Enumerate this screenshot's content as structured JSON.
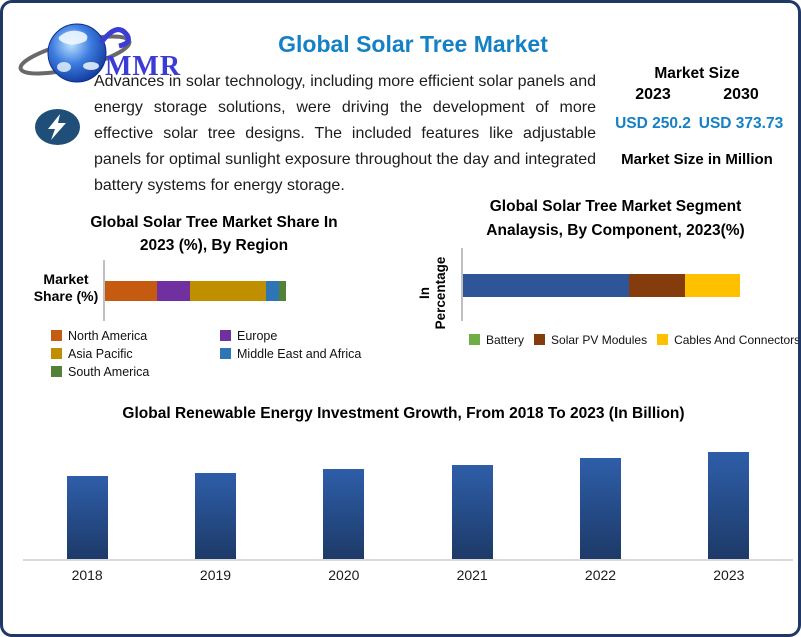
{
  "colors": {
    "frame_border": "#1F3864",
    "accent_blue": "#1581C5",
    "logo_blue": "#3B3BD6",
    "bolt_badge_bg": "#1F4E79",
    "axis_gray": "#BFBFBF",
    "baseline_gray": "#D9D9D9"
  },
  "header": {
    "logo": {
      "text": "MMR"
    },
    "title": "Global Solar Tree Market",
    "market_size": {
      "heading": "Market Size",
      "columns": [
        {
          "year": "2023",
          "value": "USD 250.2"
        },
        {
          "year": "2030",
          "value": "USD 373.73"
        }
      ],
      "footnote": "Market Size in Million"
    }
  },
  "intro": {
    "icon": "lightning-bolt",
    "text": "Advances in solar technology, including more efficient solar panels and energy storage solutions, were driving the development of more effective solar tree designs. The included features like adjustable panels for optimal sunlight exposure throughout the day and integrated battery systems for energy storage."
  },
  "chart_data": [
    {
      "id": "region-share",
      "type": "bar",
      "variant": "stacked-horizontal",
      "title": "Global Solar Tree Market Share In 2023 (%), By Region",
      "title_lines": [
        "Global Solar Tree Market Share In",
        "2023 (%), By Region"
      ],
      "ylabel": "Market Share (%)",
      "ylabel_lines": [
        "Market",
        "Share (%)"
      ],
      "note": "no data labels shown; segment shares estimated from bar lengths, total = 100%",
      "series": [
        {
          "name": "North America",
          "value": 29,
          "color": "#C55A11"
        },
        {
          "name": "Europe",
          "value": 18,
          "color": "#7030A0"
        },
        {
          "name": "Asia Pacific",
          "value": 42,
          "color": "#BF8F00"
        },
        {
          "name": "Middle East and Africa",
          "value": 7,
          "color": "#2E75B6"
        },
        {
          "name": "South America",
          "value": 4,
          "color": "#538135"
        }
      ],
      "legend_columns": [
        [
          0,
          2,
          4
        ],
        [
          1,
          3
        ]
      ],
      "legend_position": "bottom",
      "grid": false
    },
    {
      "id": "component-share",
      "type": "bar",
      "variant": "stacked-horizontal",
      "title": "Global Solar Tree Market Segment Analaysis, By Component, 2023(%)",
      "title_lines": [
        "Global Solar Tree Market Segment",
        "Analaysis, By Component, 2023(%)"
      ],
      "ylabel": "In Percentage",
      "ylabel_lines": [
        "In",
        "Percentage"
      ],
      "note": "no data labels shown; segment shares estimated from bar lengths; first bar segment is drawn blue although its legend swatch is green",
      "series": [
        {
          "name": "Battery",
          "value": 60,
          "bar_color": "#2E5597",
          "legend_color": "#70AD47"
        },
        {
          "name": "Solar PV Modules",
          "value": 20,
          "bar_color": "#843C0C",
          "legend_color": "#843C0C"
        },
        {
          "name": "Cables And Connectors",
          "value": 20,
          "bar_color": "#FFC000",
          "legend_color": "#FFC000"
        }
      ],
      "legend_position": "bottom",
      "grid": false
    },
    {
      "id": "investment-growth",
      "type": "bar",
      "title": "Global Renewable Energy Investment Growth, From 2018 To 2023 (In Billion)",
      "categories": [
        "2018",
        "2019",
        "2020",
        "2021",
        "2022",
        "2023"
      ],
      "values_relative": [
        78,
        80,
        84,
        88,
        94,
        100
      ],
      "value_note": "no y-axis ticks or data labels shown; bar heights estimated relative to 2023 = 100",
      "bar_gradient": [
        "#2E5EA9",
        "#1D3A68"
      ],
      "grid": false,
      "legend": false
    }
  ]
}
